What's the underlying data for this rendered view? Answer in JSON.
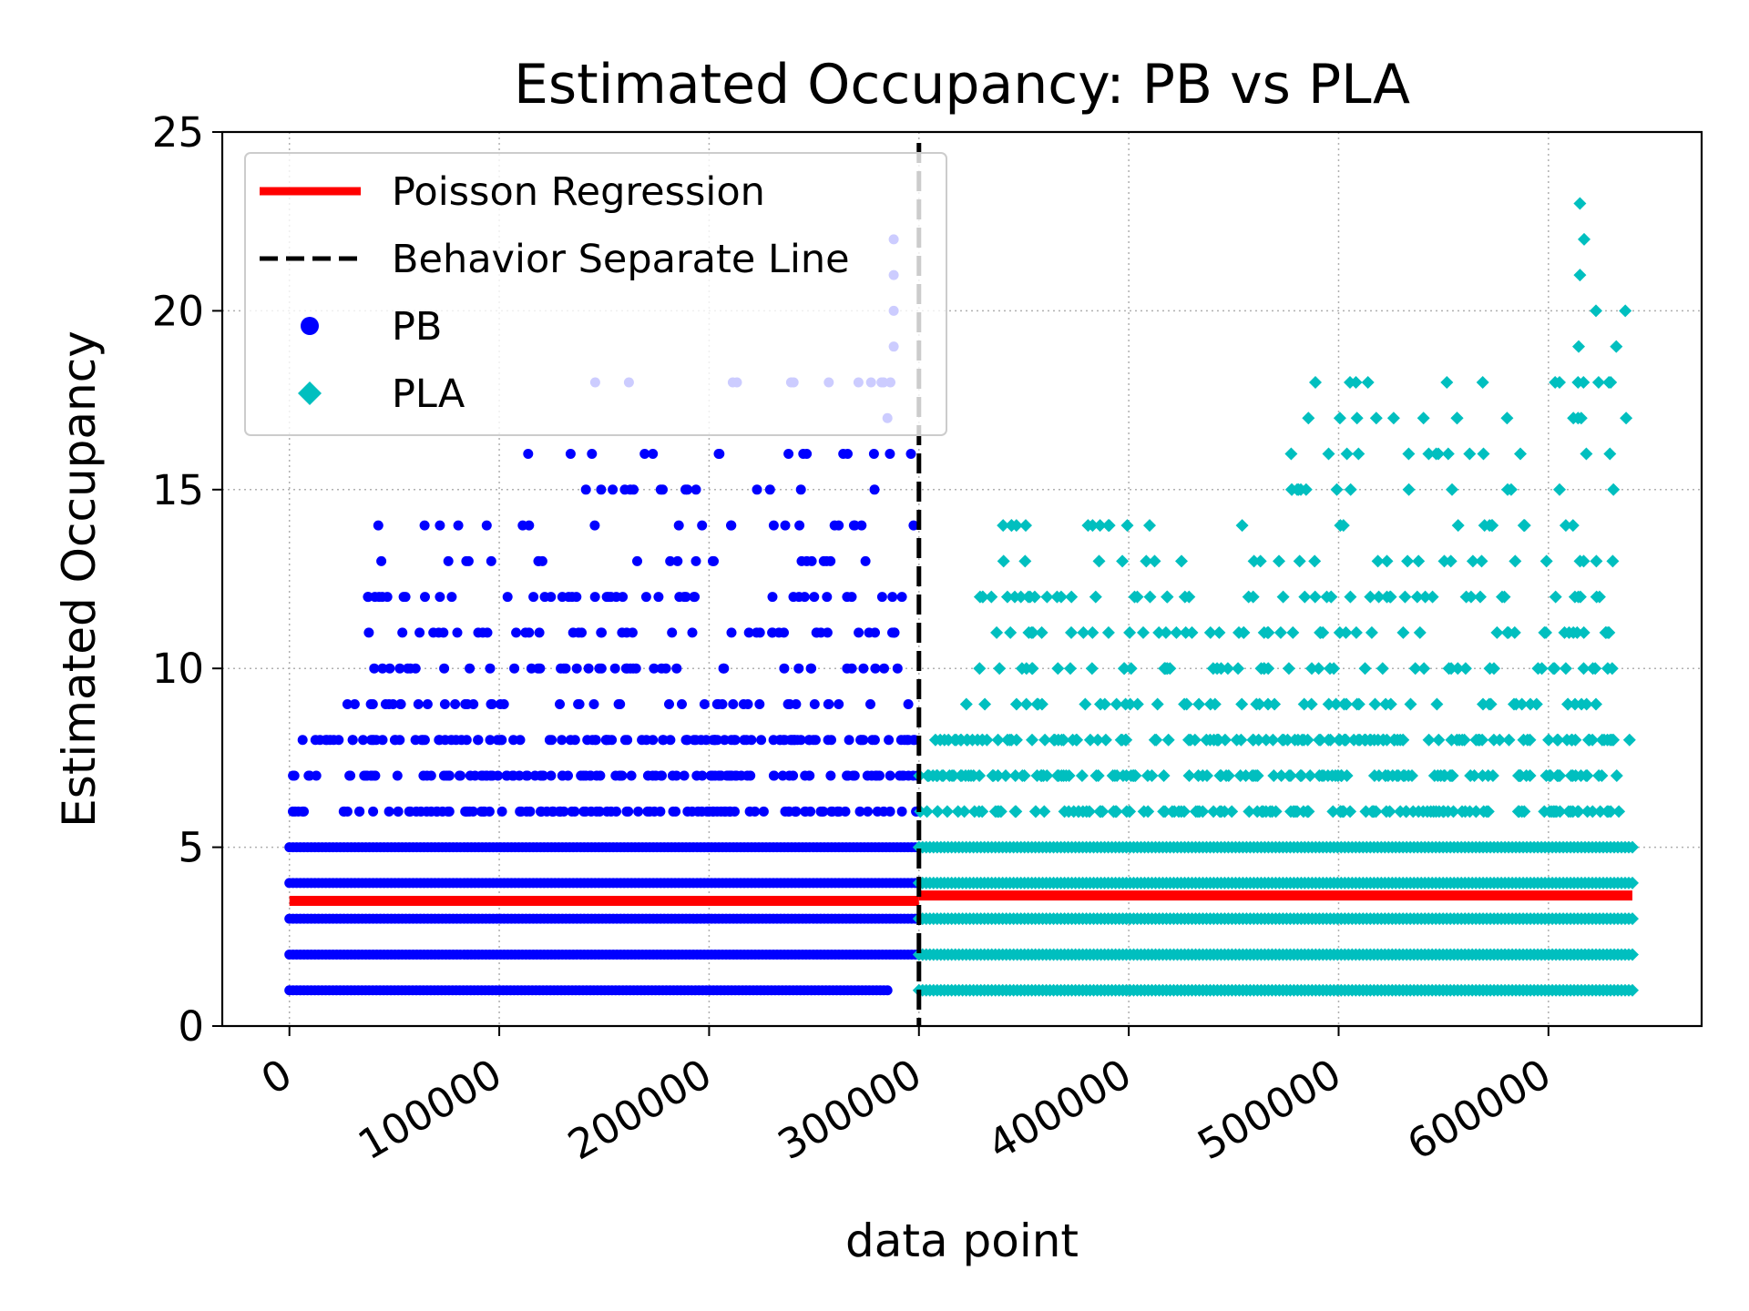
{
  "chart_data": {
    "type": "scatter",
    "title": "Estimated Occupancy: PB vs PLA",
    "xlabel": "data point",
    "ylabel": "Estimated Occupancy",
    "xlim": [
      -32000,
      673000
    ],
    "ylim": [
      0,
      25
    ],
    "xticks": [
      "0",
      "100000",
      "200000",
      "300000",
      "400000",
      "500000",
      "600000"
    ],
    "xtick_values": [
      0,
      100000,
      200000,
      300000,
      400000,
      500000,
      600000
    ],
    "yticks": [
      "0",
      "5",
      "10",
      "15",
      "20",
      "25"
    ],
    "ytick_values": [
      0,
      5,
      10,
      15,
      20,
      25
    ],
    "grid": true,
    "legend_position": "top-left",
    "legend": [
      "Poisson Regression",
      "Behavior Separate Line",
      "PB",
      "PLA"
    ],
    "separator_x": 300000,
    "colors": {
      "pb": "#0000ff",
      "pla": "#00bfbf",
      "regression": "#ff0000",
      "separator": "#000000"
    },
    "regression_segments": [
      {
        "x": [
          0,
          300000
        ],
        "y": [
          3.5,
          3.5
        ]
      },
      {
        "x": [
          300000,
          640000
        ],
        "y": [
          3.65,
          3.65
        ]
      }
    ],
    "series": [
      {
        "name": "PB",
        "marker": "circle",
        "x_range": [
          0,
          300000
        ],
        "levels": [
          {
            "y": 1,
            "x": [
              0,
              285000
            ]
          },
          {
            "y": 2,
            "x": [
              0,
              300000
            ]
          },
          {
            "y": 3,
            "x": [
              0,
              300000
            ]
          },
          {
            "y": 4,
            "x": [
              0,
              300000
            ]
          },
          {
            "y": 5,
            "x": [
              0,
              300000
            ]
          },
          {
            "y": 6,
            "x": [
              0,
              300000
            ]
          },
          {
            "y": 7,
            "x": [
              0,
              300000
            ]
          },
          {
            "y": 8,
            "x": [
              5000,
              300000
            ]
          },
          {
            "y": 9,
            "x": [
              24000,
              300000
            ]
          },
          {
            "y": 10,
            "x": [
              36000,
              300000
            ]
          },
          {
            "y": 11,
            "x": [
              36000,
              298000
            ]
          },
          {
            "y": 12,
            "x": [
              36000,
              298000
            ]
          },
          {
            "y": 13,
            "x": [
              37000,
              298000
            ]
          },
          {
            "y": 14,
            "x": [
              37000,
              298000
            ]
          },
          {
            "y": 15,
            "x": [
              112000,
              298000
            ]
          },
          {
            "y": 16,
            "x": [
              112000,
              298000
            ]
          },
          {
            "y": 17,
            "x": [
              285000,
              300000
            ]
          },
          {
            "y": 18,
            "x": [
              144000,
              288000
            ]
          },
          {
            "y": 19,
            "x": [
              288000,
              288000
            ]
          },
          {
            "y": 20,
            "x": [
              288000,
              288000
            ]
          },
          {
            "y": 21,
            "x": [
              288000,
              288000
            ]
          },
          {
            "y": 22,
            "x": [
              288000,
              288000
            ]
          }
        ]
      },
      {
        "name": "PLA",
        "marker": "diamond",
        "x_range": [
          300000,
          640000
        ],
        "levels": [
          {
            "y": 1,
            "x": [
              300000,
              640000
            ]
          },
          {
            "y": 2,
            "x": [
              300000,
              640000
            ]
          },
          {
            "y": 3,
            "x": [
              300000,
              640000
            ]
          },
          {
            "y": 4,
            "x": [
              300000,
              640000
            ]
          },
          {
            "y": 5,
            "x": [
              300000,
              640000
            ]
          },
          {
            "y": 6,
            "x": [
              300000,
              640000
            ]
          },
          {
            "y": 7,
            "x": [
              300000,
              640000
            ]
          },
          {
            "y": 8,
            "x": [
              305000,
              640000
            ]
          },
          {
            "y": 9,
            "x": [
              322000,
              640000
            ]
          },
          {
            "y": 10,
            "x": [
              328000,
              640000
            ]
          },
          {
            "y": 11,
            "x": [
              328000,
              640000
            ]
          },
          {
            "y": 12,
            "x": [
              328000,
              640000
            ]
          },
          {
            "y": 13,
            "x": [
              330000,
              640000
            ]
          },
          {
            "y": 14,
            "x": [
              333000,
              640000
            ]
          },
          {
            "y": 15,
            "x": [
              475000,
              640000
            ]
          },
          {
            "y": 16,
            "x": [
              475000,
              640000
            ]
          },
          {
            "y": 17,
            "x": [
              478000,
              640000
            ]
          },
          {
            "y": 18,
            "x": [
              484000,
              640000
            ]
          },
          {
            "y": 19,
            "x": [
              612000,
              640000
            ]
          },
          {
            "y": 20,
            "x": [
              614000,
              637000
            ]
          },
          {
            "y": 21,
            "x": [
              615000,
              618000
            ]
          },
          {
            "y": 22,
            "x": [
              617000,
              620000
            ]
          },
          {
            "y": 23,
            "x": [
              615000,
              616000
            ]
          }
        ]
      }
    ]
  }
}
